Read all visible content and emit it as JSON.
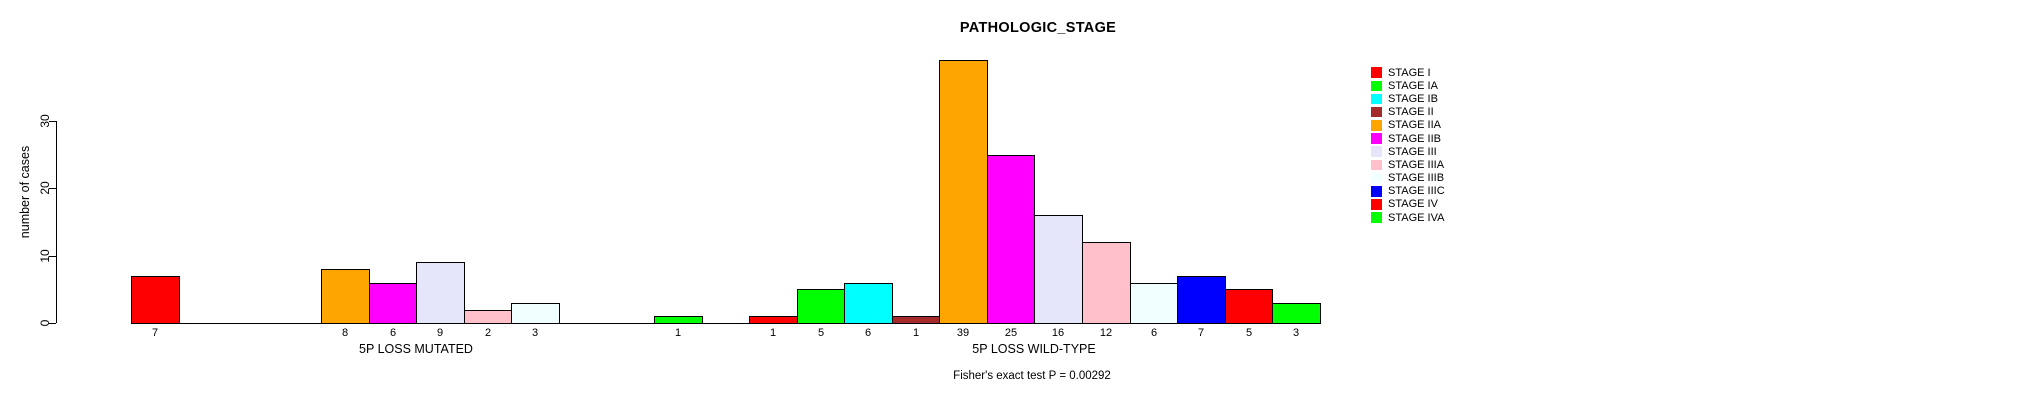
{
  "title": "PATHOLOGIC_STAGE",
  "annotation": "Fisher's exact test P = 0.00292",
  "y_axis": {
    "label": "number of cases",
    "tick_labels": [
      "0",
      "10",
      "20",
      "30"
    ]
  },
  "x_axis": {
    "group_labels": [
      "5P LOSS MUTATED",
      "5P LOSS WILD-TYPE"
    ]
  },
  "legend": {
    "position": "right",
    "labels": [
      "STAGE I",
      "STAGE IA",
      "STAGE IB",
      "STAGE II",
      "STAGE IIA",
      "STAGE IIB",
      "STAGE III",
      "STAGE IIIA",
      "STAGE IIIB",
      "STAGE IIIC",
      "STAGE IV",
      "STAGE IVA"
    ]
  },
  "chart_data": {
    "type": "bar",
    "title": "PATHOLOGIC_STAGE",
    "xlabel": "",
    "ylabel": "number of cases",
    "ylim": [
      0,
      30
    ],
    "yticks": [
      0,
      10,
      20,
      30
    ],
    "grid": false,
    "legend_position": "right",
    "annotation": "Fisher's exact test P = 0.00292",
    "categories": [
      "STAGE I",
      "STAGE IA",
      "STAGE IB",
      "STAGE II",
      "STAGE IIA",
      "STAGE IIB",
      "STAGE III",
      "STAGE IIIA",
      "STAGE IIIB",
      "STAGE IIIC",
      "STAGE IV",
      "STAGE IVA"
    ],
    "colors": [
      "#FF0000",
      "#00FF00",
      "#00FFFF",
      "#A52A2A",
      "#FFA500",
      "#FF00FF",
      "#E6E6FA",
      "#FFC0CB",
      "#F0FFFF",
      "#0000FF",
      "#FF0000",
      "#00FF00"
    ],
    "bar_value_labels_shown": true,
    "series": [
      {
        "name": "5P LOSS MUTATED",
        "values": [
          7,
          0,
          0,
          0,
          8,
          6,
          9,
          2,
          3,
          0,
          0,
          1
        ]
      },
      {
        "name": "5P LOSS WILD-TYPE",
        "values": [
          1,
          5,
          6,
          1,
          39,
          25,
          16,
          12,
          6,
          7,
          5,
          3
        ]
      }
    ]
  }
}
